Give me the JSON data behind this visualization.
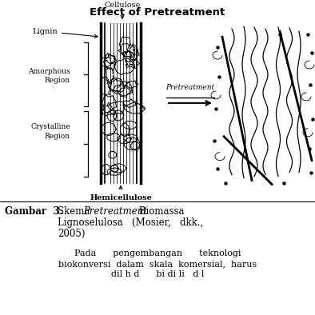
{
  "title": "Effect of Pretreatment",
  "bg_color": "#ffffff",
  "label_lignin": "Lignin",
  "label_cellulose": "Cellulose",
  "label_hemicellulose": "Hemicellulose",
  "label_amorphous_1": "Amorphous",
  "label_amorphous_2": "Region",
  "label_crystalline_1": "Crystalline",
  "label_crystalline_2": "Region",
  "label_pretreatment": "Pretreatment"
}
